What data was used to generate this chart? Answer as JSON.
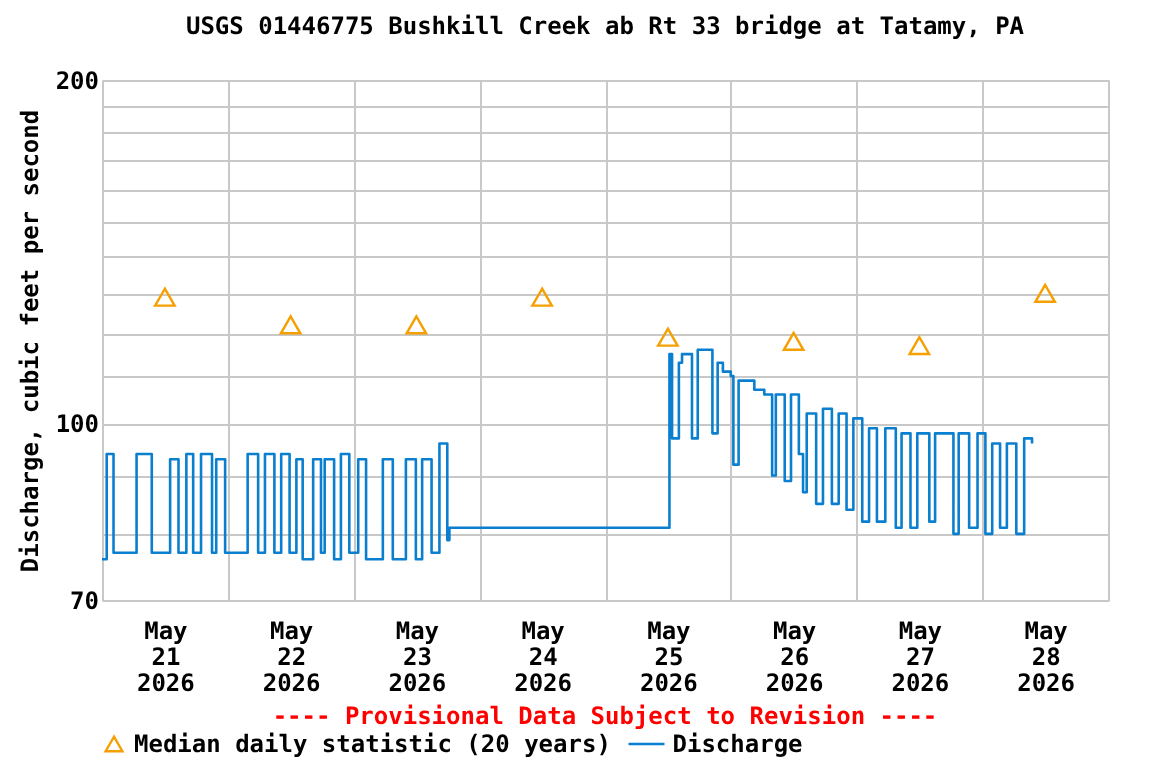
{
  "chart_data": {
    "type": "step",
    "title": "USGS 01446775 Bushkill Creek ab Rt 33 bridge at Tatamy, PA",
    "ylabel": "Discharge, cubic feet per second",
    "annotations": [
      "---- Provisional Data Subject to Revision ----"
    ],
    "log": "y",
    "grid": true,
    "legend": "bottom",
    "line_style": "solid",
    "xlim": [
      "2026-05-21T00:00",
      "2026-05-29T00:00"
    ],
    "xticks": [
      {
        "value": "2026-05-21T00:00",
        "label": null
      },
      {
        "value": "2026-05-21T12:00",
        "label": "May 21 2026"
      },
      {
        "value": "2026-05-22T00:00",
        "label": null
      },
      {
        "value": "2026-05-22T12:00",
        "label": "May 22 2026"
      },
      {
        "value": "2026-05-23T00:00",
        "label": null
      },
      {
        "value": "2026-05-23T12:00",
        "label": "May 23 2026"
      },
      {
        "value": "2026-05-24T00:00",
        "label": null
      },
      {
        "value": "2026-05-24T12:00",
        "label": "May 24 2026"
      },
      {
        "value": "2026-05-25T00:00",
        "label": null
      },
      {
        "value": "2026-05-25T12:00",
        "label": "May 25 2026"
      },
      {
        "value": "2026-05-26T00:00",
        "label": null
      },
      {
        "value": "2026-05-26T12:00",
        "label": "May 26 2026"
      },
      {
        "value": "2026-05-27T00:00",
        "label": null
      },
      {
        "value": "2026-05-27T12:00",
        "label": "May 27 2026"
      },
      {
        "value": "2026-05-28T00:00",
        "label": null
      },
      {
        "value": "2026-05-28T12:00",
        "label": "May 28 2026"
      },
      {
        "value": "2026-05-29T00:00",
        "label": null
      }
    ],
    "ylim": [
      70,
      200
    ],
    "yticks": [
      70,
      {
        "value": 80,
        "label": null
      },
      {
        "value": 90,
        "label": null
      },
      100,
      {
        "value": 110,
        "label": null
      },
      {
        "value": 120,
        "label": null
      },
      {
        "value": 130,
        "label": null
      },
      {
        "value": 140,
        "label": null
      },
      {
        "value": 150,
        "label": null
      },
      {
        "value": 160,
        "label": null
      },
      {
        "value": 170,
        "label": null
      },
      {
        "value": 180,
        "label": null
      },
      {
        "value": 190,
        "label": null
      },
      200
    ],
    "series": [
      {
        "name": "Median daily statistic (20 years)",
        "type": "scatter",
        "marker": "triangle",
        "color": "#f59f00",
        "x": [
          "2026-05-21T12:00",
          "2026-05-22T12:00",
          "2026-05-23T12:00",
          "2026-05-24T12:00",
          "2026-05-25T12:00",
          "2026-05-26T12:00",
          "2026-05-27T12:00",
          "2026-05-28T12:00"
        ],
        "values": [
          129,
          122,
          122,
          129,
          119,
          118,
          117,
          130
        ]
      },
      {
        "name": "Discharge",
        "marker": "none",
        "color": "#0a7fcf",
        "x": [
          "2026-05-21T00:00",
          "2026-05-21T00:54",
          "2026-05-21T02:12",
          "2026-05-21T06:36",
          "2026-05-21T09:30",
          "2026-05-21T13:00",
          "2026-05-21T14:36",
          "2026-05-21T16:06",
          "2026-05-21T17:24",
          "2026-05-21T18:54",
          "2026-05-21T21:00",
          "2026-05-21T21:48",
          "2026-05-21T23:30",
          "2026-05-22T03:48",
          "2026-05-22T05:48",
          "2026-05-22T07:06",
          "2026-05-22T08:54",
          "2026-05-22T10:12",
          "2026-05-22T11:48",
          "2026-05-22T13:06",
          "2026-05-22T14:18",
          "2026-05-22T16:18",
          "2026-05-22T17:48",
          "2026-05-22T18:30",
          "2026-05-22T20:18",
          "2026-05-22T21:36",
          "2026-05-22T23:12",
          "2026-05-23T00:54",
          "2026-05-23T02:24",
          "2026-05-23T05:36",
          "2026-05-23T07:30",
          "2026-05-23T10:00",
          "2026-05-23T11:54",
          "2026-05-23T13:06",
          "2026-05-23T14:54",
          "2026-05-23T16:24",
          "2026-05-23T17:54",
          "2026-05-23T18:18",
          "2026-05-25T12:18",
          "2026-05-25T12:48",
          "2026-05-25T14:06",
          "2026-05-25T14:42",
          "2026-05-25T16:36",
          "2026-05-25T17:42",
          "2026-05-25T20:30",
          "2026-05-25T21:30",
          "2026-05-25T22:30",
          "2026-05-26T00:00",
          "2026-05-26T00:30",
          "2026-05-26T01:30",
          "2026-05-26T04:30",
          "2026-05-26T06:24",
          "2026-05-26T07:54",
          "2026-05-26T08:36",
          "2026-05-26T10:18",
          "2026-05-26T11:30",
          "2026-05-26T13:00",
          "2026-05-26T13:48",
          "2026-05-26T14:30",
          "2026-05-26T16:18",
          "2026-05-26T17:36",
          "2026-05-26T19:18",
          "2026-05-26T20:36",
          "2026-05-26T22:06",
          "2026-05-26T23:24",
          "2026-05-27T01:06",
          "2026-05-27T02:24",
          "2026-05-27T03:54",
          "2026-05-27T05:30",
          "2026-05-27T07:30",
          "2026-05-27T08:36",
          "2026-05-27T10:18",
          "2026-05-27T11:36",
          "2026-05-27T13:54",
          "2026-05-27T15:00",
          "2026-05-27T18:30",
          "2026-05-27T19:30",
          "2026-05-27T21:30",
          "2026-05-27T23:06",
          "2026-05-28T00:36",
          "2026-05-28T01:54",
          "2026-05-28T03:24",
          "2026-05-28T04:42",
          "2026-05-28T06:30",
          "2026-05-28T08:00",
          "2026-05-28T09:30"
        ],
        "values": [
          76,
          94,
          77,
          94,
          77,
          93,
          77,
          94,
          77,
          94,
          77,
          93,
          77,
          94,
          77,
          94,
          77,
          94,
          77,
          93,
          76,
          93,
          77,
          93,
          76,
          94,
          77,
          93,
          76,
          93,
          76,
          93,
          76,
          93,
          77,
          96,
          79,
          81,
          115,
          97,
          113,
          115,
          97,
          116,
          98,
          113,
          111,
          110,
          92,
          109,
          107,
          106,
          90,
          106,
          89,
          106,
          94,
          87,
          102,
          85,
          103,
          85,
          102,
          84,
          101,
          82,
          99,
          82,
          99,
          81,
          98,
          81,
          98,
          82,
          98,
          80,
          98,
          81,
          98,
          80,
          96,
          81,
          96,
          80,
          97,
          96
        ]
      }
    ]
  }
}
